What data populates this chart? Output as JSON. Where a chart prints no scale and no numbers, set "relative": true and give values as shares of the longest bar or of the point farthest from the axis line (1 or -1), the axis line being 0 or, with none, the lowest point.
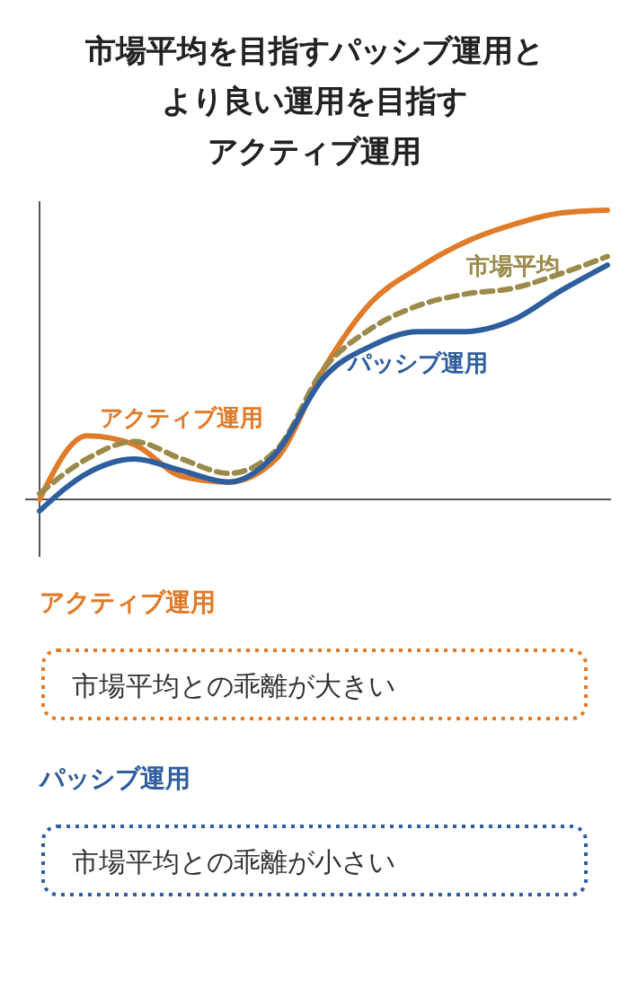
{
  "chart_data": {
    "type": "line",
    "title": "市場平均を目指すパッシブ運用とより良い運用を目指すアクティブ運用",
    "relative": true,
    "categories": [
      null,
      null,
      null,
      null,
      null,
      null,
      null,
      null,
      null,
      null,
      null,
      null,
      null
    ],
    "series": [
      {
        "name": "アクティブ運用",
        "color": "#e07b2a",
        "values": [
          0,
          0.22,
          0.19,
          0.08,
          0.06,
          0.14,
          0.45,
          0.68,
          0.8,
          0.89,
          0.95,
          0.99,
          1
        ]
      },
      {
        "name": "市場平均",
        "color": "#9b8a4a",
        "line_style": "dashed",
        "values": [
          0.02,
          0.14,
          0.2,
          0.14,
          0.09,
          0.17,
          0.45,
          0.59,
          0.67,
          0.71,
          0.73,
          0.78,
          0.84
        ]
      },
      {
        "name": "パッシブ運用",
        "color": "#2f5e9e",
        "values": [
          -0.04,
          0.09,
          0.14,
          0.1,
          0.06,
          0.16,
          0.42,
          0.53,
          0.58,
          0.58,
          0.62,
          0.72,
          0.81
        ]
      }
    ],
    "annotations": [
      "アクティブ運用",
      "市場平均との乖離が大きい",
      "パッシブ運用",
      "市場平均との乖離が小さい"
    ]
  }
}
